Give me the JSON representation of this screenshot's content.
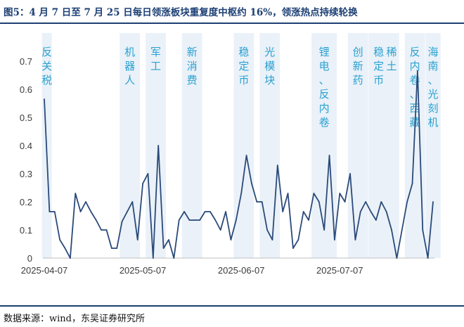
{
  "header": {
    "title": "图5：4 月 7 日至 7 月 25 日每日领涨板块重复度中枢约 16%，领涨热点持续轮换"
  },
  "footer": {
    "source": "数据来源：wind，东吴证券研究所"
  },
  "chart_data": {
    "type": "line",
    "title": "图5：4 月 7 日至 7 月 25 日每日领涨板块重复度中枢约 16%，领涨热点持续轮换",
    "xlabel": "",
    "ylabel": "",
    "ylim": [
      0,
      0.8
    ],
    "yticks": [
      0,
      0.1,
      0.2,
      0.3,
      0.4,
      0.5,
      0.6,
      0.7
    ],
    "ytick_labels": [
      "0",
      "0.1",
      "0.2",
      "0.3",
      "0.4",
      "0.5",
      "0.6",
      "0.7"
    ],
    "line_color": "#2a4a79",
    "band_color": "#eaf1f8",
    "annotation_color": "#2aa1d1",
    "xticks": [
      {
        "index": 0,
        "label": "2025-04-07"
      },
      {
        "index": 19,
        "label": "2025-05-07"
      },
      {
        "index": 38,
        "label": "2025-06-07"
      },
      {
        "index": 57,
        "label": "2025-07-07"
      }
    ],
    "values": [
      0.565,
      0.165,
      0.165,
      0.065,
      0.035,
      0.0,
      0.23,
      0.165,
      0.2,
      0.165,
      0.135,
      0.1,
      0.1,
      0.035,
      0.035,
      0.13,
      0.165,
      0.2,
      0.065,
      0.265,
      0.3,
      0.0,
      0.4,
      0.035,
      0.065,
      0.0,
      0.135,
      0.165,
      0.135,
      0.135,
      0.135,
      0.165,
      0.165,
      0.135,
      0.1,
      0.165,
      0.065,
      0.135,
      0.23,
      0.365,
      0.265,
      0.2,
      0.2,
      0.1,
      0.065,
      0.33,
      0.165,
      0.23,
      0.035,
      0.065,
      0.165,
      0.135,
      0.23,
      0.2,
      0.1,
      0.365,
      0.065,
      0.23,
      0.2,
      0.3,
      0.065,
      0.165,
      0.2,
      0.165,
      0.135,
      0.2,
      0.165,
      0.1,
      0.0,
      0.1,
      0.2,
      0.265,
      0.665,
      0.1,
      0.0,
      0.2
    ],
    "annotations": [
      {
        "text": "反关税",
        "start": 0,
        "end": 1
      },
      {
        "text": "机器人",
        "start": 15,
        "end": 18
      },
      {
        "text": "军工",
        "start": 20,
        "end": 23
      },
      {
        "text": "新消费",
        "start": 27,
        "end": 30
      },
      {
        "text": "稳定币",
        "start": 37,
        "end": 40
      },
      {
        "text": "光模块",
        "start": 42,
        "end": 45
      },
      {
        "text": "锂电、反内卷",
        "start": 52,
        "end": 56
      },
      {
        "text": "创新药",
        "start": 59,
        "end": 62
      },
      {
        "text": "稳定币",
        "start": 63,
        "end": 66
      },
      {
        "text": "稀土",
        "start": 66,
        "end": 68
      },
      {
        "text": "反内卷、西藏",
        "start": 70,
        "end": 73
      },
      {
        "text": "海南、光刻机",
        "start": 74,
        "end": 76
      }
    ]
  }
}
